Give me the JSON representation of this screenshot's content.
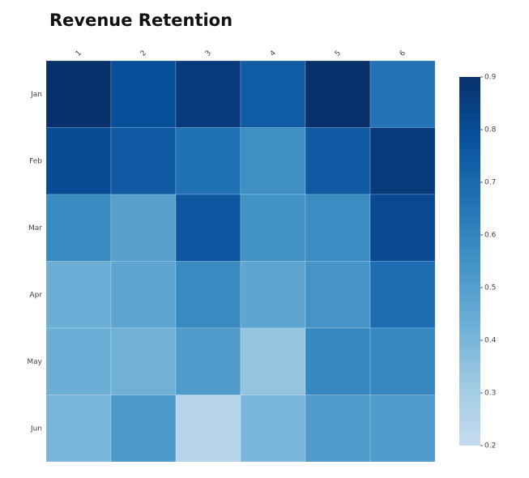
{
  "chart_data": {
    "type": "heatmap",
    "title": "Revenue Retention",
    "x_categories": [
      "1",
      "2",
      "3",
      "4",
      "5",
      "6"
    ],
    "y_categories": [
      "Jan",
      "Feb",
      "Mar",
      "Apr",
      "May",
      "Jun"
    ],
    "values": [
      [
        0.9,
        0.79,
        0.86,
        0.74,
        0.9,
        0.66
      ],
      [
        0.8,
        0.75,
        0.67,
        0.56,
        0.75,
        0.86
      ],
      [
        0.58,
        0.49,
        0.76,
        0.55,
        0.57,
        0.81
      ],
      [
        0.43,
        0.47,
        0.58,
        0.47,
        0.54,
        0.68
      ],
      [
        0.43,
        0.42,
        0.51,
        0.34,
        0.59,
        0.59
      ],
      [
        0.4,
        0.52,
        0.25,
        0.4,
        0.51,
        0.51
      ]
    ],
    "colorbar": {
      "min": 0.2,
      "max": 0.9,
      "ticks": [
        "0.2",
        "0.3",
        "0.4",
        "0.5",
        "0.6",
        "0.7",
        "0.8",
        "0.9"
      ]
    },
    "colorscale": [
      "#c6dbef",
      "#9ecae1",
      "#6baed6",
      "#4292c6",
      "#2171b5",
      "#08519c",
      "#08306b"
    ],
    "xlabel": "",
    "ylabel": "",
    "grid": false
  }
}
